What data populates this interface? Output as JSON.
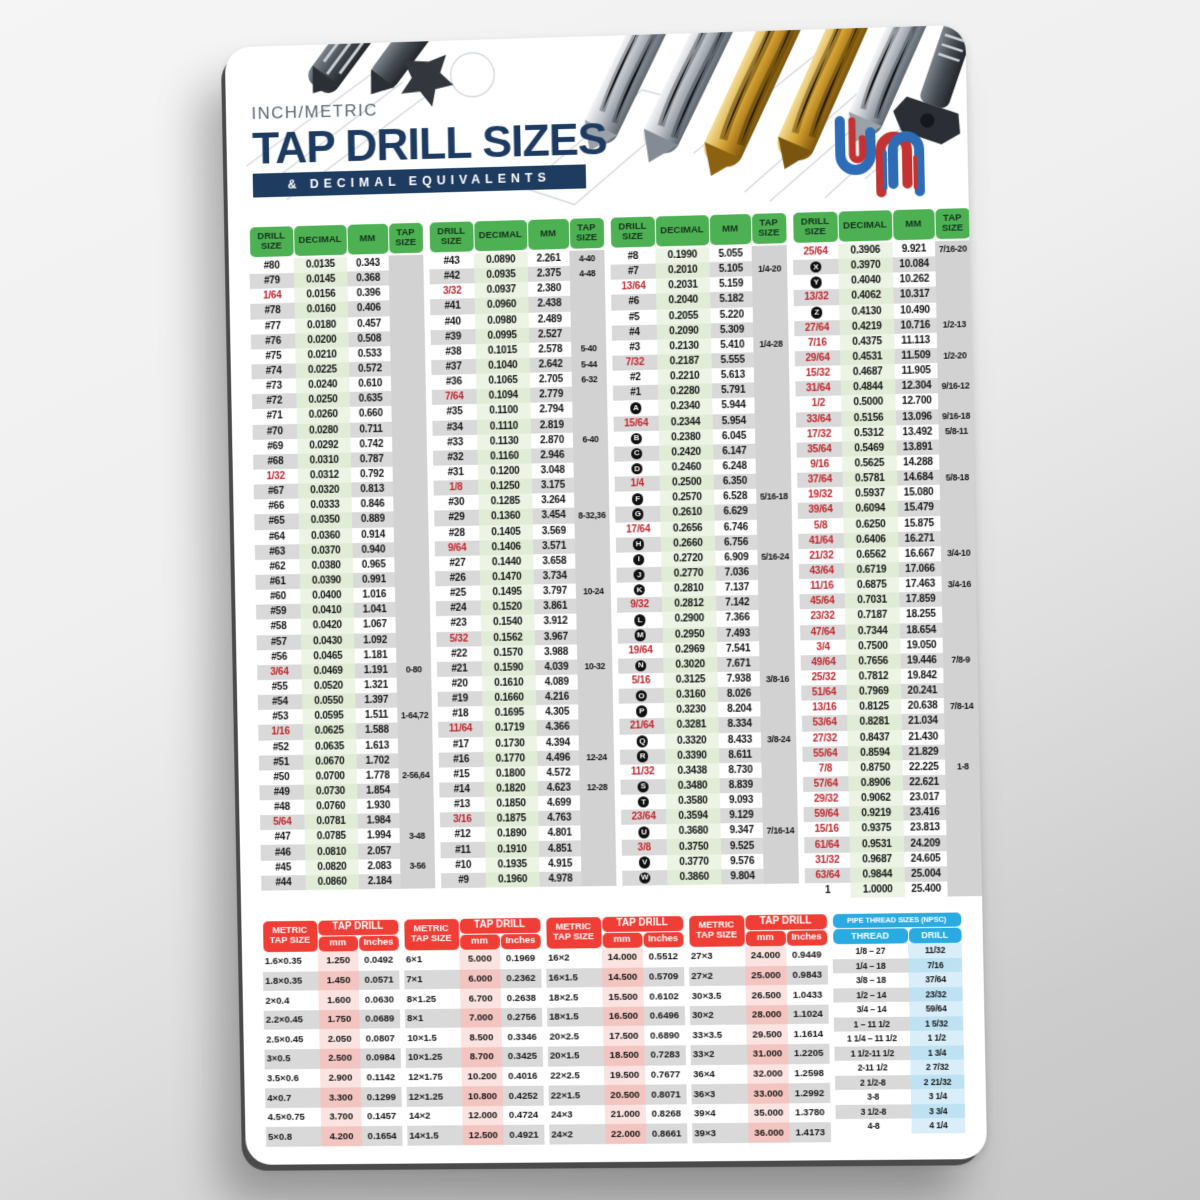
{
  "header": {
    "subtitle": "INCH/METRIC",
    "title": "TAP DRILL SIZES",
    "banner": "& DECIMAL EQUIVALENTS",
    "logo_text": "um"
  },
  "colors": {
    "green_header": "#4db153",
    "red_header": "#ee3e36",
    "blue_header": "#29abe2",
    "navy": "#1e3b60",
    "fraction_red": "#c1272d"
  },
  "drill_table_headers": {
    "size": "DRILL SIZE",
    "decimal": "DECIMAL",
    "mm": "MM",
    "tap": "TAP SIZE"
  },
  "drill_columns": [
    [
      [
        "#80",
        "0.0135",
        "0.343",
        "",
        "n"
      ],
      [
        "#79",
        "0.0145",
        "0.368",
        "",
        "n"
      ],
      [
        "1/64",
        "0.0156",
        "0.396",
        "",
        "f"
      ],
      [
        "#78",
        "0.0160",
        "0.406",
        "",
        "n"
      ],
      [
        "#77",
        "0.0180",
        "0.457",
        "",
        "n"
      ],
      [
        "#76",
        "0.0200",
        "0.508",
        "",
        "n"
      ],
      [
        "#75",
        "0.0210",
        "0.533",
        "",
        "n"
      ],
      [
        "#74",
        "0.0225",
        "0.572",
        "",
        "n"
      ],
      [
        "#73",
        "0.0240",
        "0.610",
        "",
        "n"
      ],
      [
        "#72",
        "0.0250",
        "0.635",
        "",
        "n"
      ],
      [
        "#71",
        "0.0260",
        "0.660",
        "",
        "n"
      ],
      [
        "#70",
        "0.0280",
        "0.711",
        "",
        "n"
      ],
      [
        "#69",
        "0.0292",
        "0.742",
        "",
        "n"
      ],
      [
        "#68",
        "0.0310",
        "0.787",
        "",
        "n"
      ],
      [
        "1/32",
        "0.0312",
        "0.792",
        "",
        "f"
      ],
      [
        "#67",
        "0.0320",
        "0.813",
        "",
        "n"
      ],
      [
        "#66",
        "0.0333",
        "0.846",
        "",
        "n"
      ],
      [
        "#65",
        "0.0350",
        "0.889",
        "",
        "n"
      ],
      [
        "#64",
        "0.0360",
        "0.914",
        "",
        "n"
      ],
      [
        "#63",
        "0.0370",
        "0.940",
        "",
        "n"
      ],
      [
        "#62",
        "0.0380",
        "0.965",
        "",
        "n"
      ],
      [
        "#61",
        "0.0390",
        "0.991",
        "",
        "n"
      ],
      [
        "#60",
        "0.0400",
        "1.016",
        "",
        "n"
      ],
      [
        "#59",
        "0.0410",
        "1.041",
        "",
        "n"
      ],
      [
        "#58",
        "0.0420",
        "1.067",
        "",
        "n"
      ],
      [
        "#57",
        "0.0430",
        "1.092",
        "",
        "n"
      ],
      [
        "#56",
        "0.0465",
        "1.181",
        "",
        "n"
      ],
      [
        "3/64",
        "0.0469",
        "1.191",
        "0-80",
        "f"
      ],
      [
        "#55",
        "0.0520",
        "1.321",
        "",
        "n"
      ],
      [
        "#54",
        "0.0550",
        "1.397",
        "",
        "n"
      ],
      [
        "#53",
        "0.0595",
        "1.511",
        "1-64,72",
        "n"
      ],
      [
        "1/16",
        "0.0625",
        "1.588",
        "",
        "f"
      ],
      [
        "#52",
        "0.0635",
        "1.613",
        "",
        "n"
      ],
      [
        "#51",
        "0.0670",
        "1.702",
        "",
        "n"
      ],
      [
        "#50",
        "0.0700",
        "1.778",
        "2-56,64",
        "n"
      ],
      [
        "#49",
        "0.0730",
        "1.854",
        "",
        "n"
      ],
      [
        "#48",
        "0.0760",
        "1.930",
        "",
        "n"
      ],
      [
        "5/64",
        "0.0781",
        "1.984",
        "",
        "f"
      ],
      [
        "#47",
        "0.0785",
        "1.994",
        "3-48",
        "n"
      ],
      [
        "#46",
        "0.0810",
        "2.057",
        "",
        "n"
      ],
      [
        "#45",
        "0.0820",
        "2.083",
        "3-56",
        "n"
      ],
      [
        "#44",
        "0.0860",
        "2.184",
        "",
        "n"
      ]
    ],
    [
      [
        "#43",
        "0.0890",
        "2.261",
        "4-40",
        "n"
      ],
      [
        "#42",
        "0.0935",
        "2.375",
        "4-48",
        "n"
      ],
      [
        "3/32",
        "0.0937",
        "2.380",
        "",
        "f"
      ],
      [
        "#41",
        "0.0960",
        "2.438",
        "",
        "n"
      ],
      [
        "#40",
        "0.0980",
        "2.489",
        "",
        "n"
      ],
      [
        "#39",
        "0.0995",
        "2.527",
        "",
        "n"
      ],
      [
        "#38",
        "0.1015",
        "2.578",
        "5-40",
        "n"
      ],
      [
        "#37",
        "0.1040",
        "2.642",
        "5-44",
        "n"
      ],
      [
        "#36",
        "0.1065",
        "2.705",
        "6-32",
        "n"
      ],
      [
        "7/64",
        "0.1094",
        "2.779",
        "",
        "f"
      ],
      [
        "#35",
        "0.1100",
        "2.794",
        "",
        "n"
      ],
      [
        "#34",
        "0.1110",
        "2.819",
        "",
        "n"
      ],
      [
        "#33",
        "0.1130",
        "2.870",
        "6-40",
        "n"
      ],
      [
        "#32",
        "0.1160",
        "2.946",
        "",
        "n"
      ],
      [
        "#31",
        "0.1200",
        "3.048",
        "",
        "n"
      ],
      [
        "1/8",
        "0.1250",
        "3.175",
        "",
        "f"
      ],
      [
        "#30",
        "0.1285",
        "3.264",
        "",
        "n"
      ],
      [
        "#29",
        "0.1360",
        "3.454",
        "8-32,36",
        "n"
      ],
      [
        "#28",
        "0.1405",
        "3.569",
        "",
        "n"
      ],
      [
        "9/64",
        "0.1406",
        "3.571",
        "",
        "f"
      ],
      [
        "#27",
        "0.1440",
        "3.658",
        "",
        "n"
      ],
      [
        "#26",
        "0.1470",
        "3.734",
        "",
        "n"
      ],
      [
        "#25",
        "0.1495",
        "3.797",
        "10-24",
        "n"
      ],
      [
        "#24",
        "0.1520",
        "3.861",
        "",
        "n"
      ],
      [
        "#23",
        "0.1540",
        "3.912",
        "",
        "n"
      ],
      [
        "5/32",
        "0.1562",
        "3.967",
        "",
        "f"
      ],
      [
        "#22",
        "0.1570",
        "3.988",
        "",
        "n"
      ],
      [
        "#21",
        "0.1590",
        "4.039",
        "10-32",
        "n"
      ],
      [
        "#20",
        "0.1610",
        "4.089",
        "",
        "n"
      ],
      [
        "#19",
        "0.1660",
        "4.216",
        "",
        "n"
      ],
      [
        "#18",
        "0.1695",
        "4.305",
        "",
        "n"
      ],
      [
        "11/64",
        "0.1719",
        "4.366",
        "",
        "f"
      ],
      [
        "#17",
        "0.1730",
        "4.394",
        "",
        "n"
      ],
      [
        "#16",
        "0.1770",
        "4.496",
        "12-24",
        "n"
      ],
      [
        "#15",
        "0.1800",
        "4.572",
        "",
        "n"
      ],
      [
        "#14",
        "0.1820",
        "4.623",
        "12-28",
        "n"
      ],
      [
        "#13",
        "0.1850",
        "4.699",
        "",
        "n"
      ],
      [
        "3/16",
        "0.1875",
        "4.763",
        "",
        "f"
      ],
      [
        "#12",
        "0.1890",
        "4.801",
        "",
        "n"
      ],
      [
        "#11",
        "0.1910",
        "4.851",
        "",
        "n"
      ],
      [
        "#10",
        "0.1935",
        "4.915",
        "",
        "n"
      ],
      [
        "#9",
        "0.1960",
        "4.978",
        "",
        "n"
      ]
    ],
    [
      [
        "#8",
        "0.1990",
        "5.055",
        "",
        "n"
      ],
      [
        "#7",
        "0.2010",
        "5.105",
        "1/4-20",
        "n"
      ],
      [
        "13/64",
        "0.2031",
        "5.159",
        "",
        "f"
      ],
      [
        "#6",
        "0.2040",
        "5.182",
        "",
        "n"
      ],
      [
        "#5",
        "0.2055",
        "5.220",
        "",
        "n"
      ],
      [
        "#4",
        "0.2090",
        "5.309",
        "",
        "n"
      ],
      [
        "#3",
        "0.2130",
        "5.410",
        "1/4-28",
        "n"
      ],
      [
        "7/32",
        "0.2187",
        "5.555",
        "",
        "f"
      ],
      [
        "#2",
        "0.2210",
        "5.613",
        "",
        "n"
      ],
      [
        "#1",
        "0.2280",
        "5.791",
        "",
        "n"
      ],
      [
        "A",
        "0.2340",
        "5.944",
        "",
        "l"
      ],
      [
        "15/64",
        "0.2344",
        "5.954",
        "",
        "f"
      ],
      [
        "B",
        "0.2380",
        "6.045",
        "",
        "l"
      ],
      [
        "C",
        "0.2420",
        "6.147",
        "",
        "l"
      ],
      [
        "D",
        "0.2460",
        "6.248",
        "",
        "l"
      ],
      [
        "1/4",
        "0.2500",
        "6.350",
        "",
        "f"
      ],
      [
        "F",
        "0.2570",
        "6.528",
        "5/16-18",
        "l"
      ],
      [
        "G",
        "0.2610",
        "6.629",
        "",
        "l"
      ],
      [
        "17/64",
        "0.2656",
        "6.746",
        "",
        "f"
      ],
      [
        "H",
        "0.2660",
        "6.756",
        "",
        "l"
      ],
      [
        "I",
        "0.2720",
        "6.909",
        "5/16-24",
        "l"
      ],
      [
        "J",
        "0.2770",
        "7.036",
        "",
        "l"
      ],
      [
        "K",
        "0.2810",
        "7.137",
        "",
        "l"
      ],
      [
        "9/32",
        "0.2812",
        "7.142",
        "",
        "f"
      ],
      [
        "L",
        "0.2900",
        "7.366",
        "",
        "l"
      ],
      [
        "M",
        "0.2950",
        "7.493",
        "",
        "l"
      ],
      [
        "19/64",
        "0.2969",
        "7.541",
        "",
        "f"
      ],
      [
        "N",
        "0.3020",
        "7.671",
        "",
        "l"
      ],
      [
        "5/16",
        "0.3125",
        "7.938",
        "3/8-16",
        "f"
      ],
      [
        "O",
        "0.3160",
        "8.026",
        "",
        "l"
      ],
      [
        "P",
        "0.3230",
        "8.204",
        "",
        "l"
      ],
      [
        "21/64",
        "0.3281",
        "8.334",
        "",
        "f"
      ],
      [
        "Q",
        "0.3320",
        "8.433",
        "3/8-24",
        "l"
      ],
      [
        "R",
        "0.3390",
        "8.611",
        "",
        "l"
      ],
      [
        "11/32",
        "0.3438",
        "8.730",
        "",
        "f"
      ],
      [
        "S",
        "0.3480",
        "8.839",
        "",
        "l"
      ],
      [
        "T",
        "0.3580",
        "9.093",
        "",
        "l"
      ],
      [
        "23/64",
        "0.3594",
        "9.129",
        "",
        "f"
      ],
      [
        "U",
        "0.3680",
        "9.347",
        "7/16-14",
        "l"
      ],
      [
        "3/8",
        "0.3750",
        "9.525",
        "",
        "f"
      ],
      [
        "V",
        "0.3770",
        "9.576",
        "",
        "l"
      ],
      [
        "W",
        "0.3860",
        "9.804",
        "",
        "l"
      ]
    ],
    [
      [
        "25/64",
        "0.3906",
        "9.921",
        "7/16-20",
        "f"
      ],
      [
        "X",
        "0.3970",
        "10.084",
        "",
        "l"
      ],
      [
        "Y",
        "0.4040",
        "10.262",
        "",
        "l"
      ],
      [
        "13/32",
        "0.4062",
        "10.317",
        "",
        "f"
      ],
      [
        "Z",
        "0.4130",
        "10.490",
        "",
        "l"
      ],
      [
        "27/64",
        "0.4219",
        "10.716",
        "1/2-13",
        "f"
      ],
      [
        "7/16",
        "0.4375",
        "11.113",
        "",
        "f"
      ],
      [
        "29/64",
        "0.4531",
        "11.509",
        "1/2-20",
        "f"
      ],
      [
        "15/32",
        "0.4687",
        "11.905",
        "",
        "f"
      ],
      [
        "31/64",
        "0.4844",
        "12.304",
        "9/16-12",
        "f"
      ],
      [
        "1/2",
        "0.5000",
        "12.700",
        "",
        "f"
      ],
      [
        "33/64",
        "0.5156",
        "13.096",
        "9/16-18",
        "f"
      ],
      [
        "17/32",
        "0.5312",
        "13.492",
        "5/8-11",
        "f"
      ],
      [
        "35/64",
        "0.5469",
        "13.891",
        "",
        "f"
      ],
      [
        "9/16",
        "0.5625",
        "14.288",
        "",
        "f"
      ],
      [
        "37/64",
        "0.5781",
        "14.684",
        "5/8-18",
        "f"
      ],
      [
        "19/32",
        "0.5937",
        "15.080",
        "",
        "f"
      ],
      [
        "39/64",
        "0.6094",
        "15.479",
        "",
        "f"
      ],
      [
        "5/8",
        "0.6250",
        "15.875",
        "",
        "f"
      ],
      [
        "41/64",
        "0.6406",
        "16.271",
        "",
        "f"
      ],
      [
        "21/32",
        "0.6562",
        "16.667",
        "3/4-10",
        "f"
      ],
      [
        "43/64",
        "0.6719",
        "17.066",
        "",
        "f"
      ],
      [
        "11/16",
        "0.6875",
        "17.463",
        "3/4-16",
        "f"
      ],
      [
        "45/64",
        "0.7031",
        "17.859",
        "",
        "f"
      ],
      [
        "23/32",
        "0.7187",
        "18.255",
        "",
        "f"
      ],
      [
        "47/64",
        "0.7344",
        "18.654",
        "",
        "f"
      ],
      [
        "3/4",
        "0.7500",
        "19.050",
        "",
        "f"
      ],
      [
        "49/64",
        "0.7656",
        "19.446",
        "7/8-9",
        "f"
      ],
      [
        "25/32",
        "0.7812",
        "19.842",
        "",
        "f"
      ],
      [
        "51/64",
        "0.7969",
        "20.241",
        "",
        "f"
      ],
      [
        "13/16",
        "0.8125",
        "20.638",
        "7/8-14",
        "f"
      ],
      [
        "53/64",
        "0.8281",
        "21.034",
        "",
        "f"
      ],
      [
        "27/32",
        "0.8437",
        "21.430",
        "",
        "f"
      ],
      [
        "55/64",
        "0.8594",
        "21.829",
        "",
        "f"
      ],
      [
        "7/8",
        "0.8750",
        "22.225",
        "1-8",
        "f"
      ],
      [
        "57/64",
        "0.8906",
        "22.621",
        "",
        "f"
      ],
      [
        "29/32",
        "0.9062",
        "23.017",
        "",
        "f"
      ],
      [
        "59/64",
        "0.9219",
        "23.416",
        "",
        "f"
      ],
      [
        "15/16",
        "0.9375",
        "23.813",
        "",
        "f"
      ],
      [
        "61/64",
        "0.9531",
        "24.209",
        "",
        "f"
      ],
      [
        "31/32",
        "0.9687",
        "24.605",
        "",
        "f"
      ],
      [
        "63/64",
        "0.9844",
        "25.004",
        "",
        "f"
      ],
      [
        "1",
        "1.0000",
        "25.400",
        "",
        "n"
      ]
    ]
  ],
  "metric_header": {
    "tap_size": "METRIC TAP SIZE",
    "tap_drill": "TAP DRILL",
    "mm": "mm",
    "inches": "Inches"
  },
  "metric_tables": [
    [
      [
        "1.6×0.35",
        "1.250",
        "0.0492"
      ],
      [
        "1.8×0.35",
        "1.450",
        "0.0571"
      ],
      [
        "2×0.4",
        "1.600",
        "0.0630"
      ],
      [
        "2.2×0.45",
        "1.750",
        "0.0689"
      ],
      [
        "2.5×0.45",
        "2.050",
        "0.0807"
      ],
      [
        "3×0.5",
        "2.500",
        "0.0984"
      ],
      [
        "3.5×0.6",
        "2.900",
        "0.1142"
      ],
      [
        "4×0.7",
        "3.300",
        "0.1299"
      ],
      [
        "4.5×0.75",
        "3.700",
        "0.1457"
      ],
      [
        "5×0.8",
        "4.200",
        "0.1654"
      ]
    ],
    [
      [
        "6×1",
        "5.000",
        "0.1969"
      ],
      [
        "7×1",
        "6.000",
        "0.2362"
      ],
      [
        "8×1.25",
        "6.700",
        "0.2638"
      ],
      [
        "8×1",
        "7.000",
        "0.2756"
      ],
      [
        "10×1.5",
        "8.500",
        "0.3346"
      ],
      [
        "10×1.25",
        "8.700",
        "0.3425"
      ],
      [
        "12×1.75",
        "10.200",
        "0.4016"
      ],
      [
        "12×1.25",
        "10.800",
        "0.4252"
      ],
      [
        "14×2",
        "12.000",
        "0.4724"
      ],
      [
        "14×1.5",
        "12.500",
        "0.4921"
      ]
    ],
    [
      [
        "16×2",
        "14.000",
        "0.5512"
      ],
      [
        "16×1.5",
        "14.500",
        "0.5709"
      ],
      [
        "18×2.5",
        "15.500",
        "0.6102"
      ],
      [
        "18×1.5",
        "16.500",
        "0.6496"
      ],
      [
        "20×2.5",
        "17.500",
        "0.6890"
      ],
      [
        "20×1.5",
        "18.500",
        "0.7283"
      ],
      [
        "22×2.5",
        "19.500",
        "0.7677"
      ],
      [
        "22×1.5",
        "20.500",
        "0.8071"
      ],
      [
        "24×3",
        "21.000",
        "0.8268"
      ],
      [
        "24×2",
        "22.000",
        "0.8661"
      ]
    ],
    [
      [
        "27×3",
        "24.000",
        "0.9449"
      ],
      [
        "27×2",
        "25.000",
        "0.9843"
      ],
      [
        "30×3.5",
        "26.500",
        "1.0433"
      ],
      [
        "30×2",
        "28.000",
        "1.1024"
      ],
      [
        "33×3.5",
        "29.500",
        "1.1614"
      ],
      [
        "33×2",
        "31.000",
        "1.2205"
      ],
      [
        "36×4",
        "32.000",
        "1.2598"
      ],
      [
        "36×3",
        "33.000",
        "1.2992"
      ],
      [
        "39×4",
        "35.000",
        "1.3780"
      ],
      [
        "39×3",
        "36.000",
        "1.4173"
      ]
    ]
  ],
  "pipe_table": {
    "title": "PIPE THREAD SIZES (NPSC)",
    "columns": [
      "THREAD",
      "DRILL"
    ],
    "rows": [
      [
        "1/8 – 27",
        "11/32"
      ],
      [
        "1/4 – 18",
        "7/16"
      ],
      [
        "3/8 – 18",
        "37/64"
      ],
      [
        "1/2 – 14",
        "23/32"
      ],
      [
        "3/4 – 14",
        "59/64"
      ],
      [
        "1 – 11 1/2",
        "1 5/32"
      ],
      [
        "1 1/4 – 11 1/2",
        "1 1/2"
      ],
      [
        "1 1/2-11 1/2",
        "1 3/4"
      ],
      [
        "2-11 1/2",
        "2 7/32"
      ],
      [
        "2 1/2-8",
        "2 21/32"
      ],
      [
        "3-8",
        "3 1/4"
      ],
      [
        "3 1/2-8",
        "3 3/4"
      ],
      [
        "4-8",
        "4 1/4"
      ]
    ]
  }
}
